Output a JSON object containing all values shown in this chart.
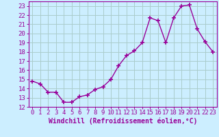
{
  "x": [
    0,
    1,
    2,
    3,
    4,
    5,
    6,
    7,
    8,
    9,
    10,
    11,
    12,
    13,
    14,
    15,
    16,
    17,
    18,
    19,
    20,
    21,
    22,
    23
  ],
  "y": [
    14.8,
    14.5,
    13.6,
    13.6,
    12.5,
    12.5,
    13.1,
    13.3,
    13.9,
    14.2,
    15.0,
    16.5,
    17.6,
    18.1,
    19.0,
    21.7,
    21.4,
    19.0,
    21.7,
    23.0,
    23.1,
    20.5,
    19.1,
    18.0
  ],
  "line_color": "#990099",
  "marker": "+",
  "marker_size": 5,
  "line_width": 1.0,
  "bg_color": "#cceeff",
  "grid_color": "#aacccc",
  "xlabel": "Windchill (Refroidissement éolien,°C)",
  "xlabel_fontsize": 7,
  "tick_fontsize": 6.5,
  "ylim": [
    12,
    23.5
  ],
  "yticks": [
    12,
    13,
    14,
    15,
    16,
    17,
    18,
    19,
    20,
    21,
    22,
    23
  ],
  "xticks": [
    0,
    1,
    2,
    3,
    4,
    5,
    6,
    7,
    8,
    9,
    10,
    11,
    12,
    13,
    14,
    15,
    16,
    17,
    18,
    19,
    20,
    21,
    22,
    23
  ],
  "xlim": [
    -0.5,
    23.5
  ]
}
